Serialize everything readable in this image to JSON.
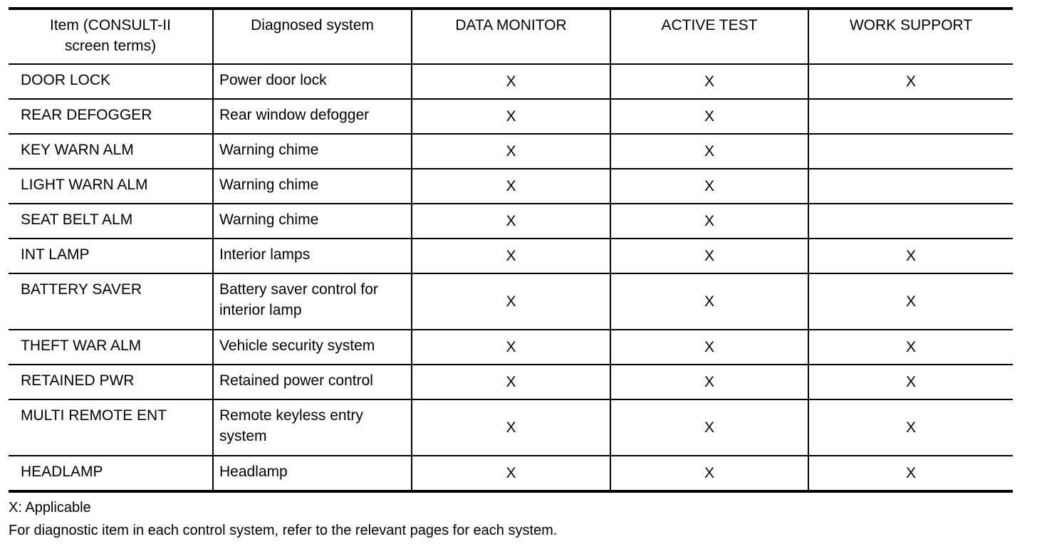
{
  "table": {
    "headers": [
      "Item (CONSULT-II screen terms)",
      "Diagnosed system",
      "DATA MONITOR",
      "ACTIVE TEST",
      "WORK SUPPORT"
    ],
    "rows": [
      {
        "item": "DOOR LOCK",
        "system": "Power door lock",
        "data_monitor": "X",
        "active_test": "X",
        "work_support": "X"
      },
      {
        "item": "REAR DEFOGGER",
        "system": "Rear window defogger",
        "data_monitor": "X",
        "active_test": "X",
        "work_support": ""
      },
      {
        "item": "KEY WARN ALM",
        "system": "Warning chime",
        "data_monitor": "X",
        "active_test": "X",
        "work_support": ""
      },
      {
        "item": "LIGHT WARN ALM",
        "system": "Warning chime",
        "data_monitor": "X",
        "active_test": "X",
        "work_support": ""
      },
      {
        "item": "SEAT BELT ALM",
        "system": "Warning chime",
        "data_monitor": "X",
        "active_test": "X",
        "work_support": ""
      },
      {
        "item": "INT LAMP",
        "system": "Interior lamps",
        "data_monitor": "X",
        "active_test": "X",
        "work_support": "X"
      },
      {
        "item": "BATTERY SAVER",
        "system": "Battery saver control for interior lamp",
        "data_monitor": "X",
        "active_test": "X",
        "work_support": "X"
      },
      {
        "item": "THEFT WAR ALM",
        "system": "Vehicle security system",
        "data_monitor": "X",
        "active_test": "X",
        "work_support": "X"
      },
      {
        "item": "RETAINED PWR",
        "system": "Retained power control",
        "data_monitor": "X",
        "active_test": "X",
        "work_support": "X"
      },
      {
        "item": "MULTI REMOTE ENT",
        "system": "Remote keyless entry system",
        "data_monitor": "X",
        "active_test": "X",
        "work_support": "X"
      },
      {
        "item": "HEADLAMP",
        "system": "Headlamp",
        "data_monitor": "X",
        "active_test": "X",
        "work_support": "X"
      }
    ]
  },
  "notes": {
    "legend": "X: Applicable",
    "reference": "For diagnostic item in each control system, refer to the relevant pages for each system."
  }
}
